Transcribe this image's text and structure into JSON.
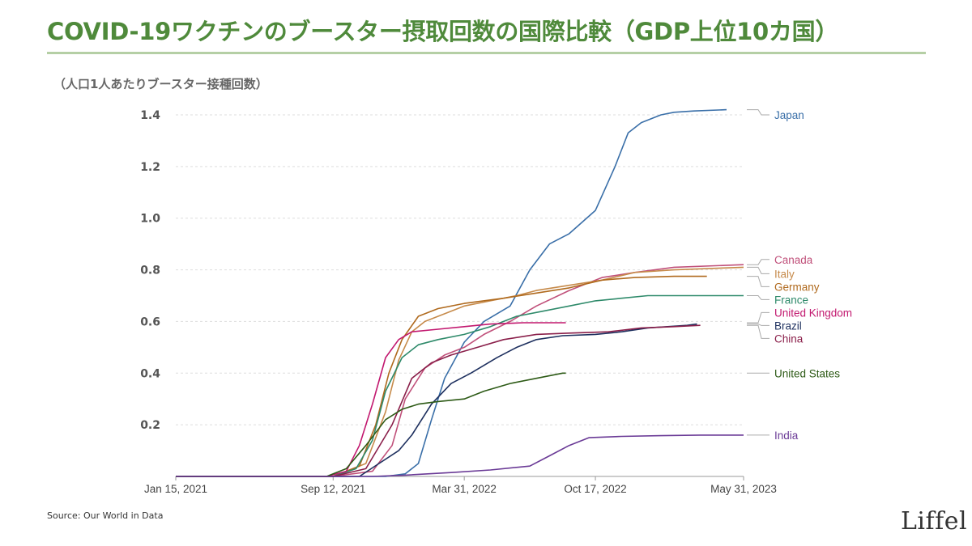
{
  "header": {
    "title": "COVID-19ワクチンのブースター摂取回数の国際比較（GDP上位10カ国）",
    "y_unit_note": "（人口1人あたりブースター接種回数）"
  },
  "footer": {
    "source": "Source: Our World in Data",
    "logo_text": "Liffel"
  },
  "colors": {
    "title": "#4f8a3b",
    "rule": "#b5cfa5"
  },
  "chart_data": {
    "type": "line",
    "title": "COVID-19ワクチンのブースター摂取回数の国際比較（GDP上位10カ国）",
    "ylabel": "（人口1人あたりブースター接種回数）",
    "xlabel": "",
    "x_start": "2021-01-15",
    "x_end": "2023-05-31",
    "x_unit": "days since Jan 15, 2021",
    "xlim": [
      0,
      866
    ],
    "ylim": [
      0,
      1.4
    ],
    "grid": true,
    "x_ticks": [
      {
        "label": "Jan 15, 2021",
        "day": 0
      },
      {
        "label": "Sep 12, 2021",
        "day": 240
      },
      {
        "label": "Mar 31, 2022",
        "day": 440
      },
      {
        "label": "Oct 17, 2022",
        "day": 640
      },
      {
        "label": "May 31, 2023",
        "day": 866
      }
    ],
    "y_ticks": [
      {
        "label": "0.2",
        "value": 0.2
      },
      {
        "label": "0.4",
        "value": 0.4
      },
      {
        "label": "0.6",
        "value": 0.6
      },
      {
        "label": "0.8",
        "value": 0.8
      },
      {
        "label": "1.0",
        "value": 1.0
      },
      {
        "label": "1.2",
        "value": 1.2
      },
      {
        "label": "1.4",
        "value": 1.4
      }
    ],
    "series": [
      {
        "name": "Japan",
        "color": "#3a6fa8",
        "label_value": 1.4,
        "points": [
          [
            320,
            0
          ],
          [
            350,
            0.01
          ],
          [
            370,
            0.05
          ],
          [
            390,
            0.22
          ],
          [
            410,
            0.38
          ],
          [
            440,
            0.52
          ],
          [
            470,
            0.6
          ],
          [
            510,
            0.66
          ],
          [
            540,
            0.8
          ],
          [
            570,
            0.9
          ],
          [
            600,
            0.94
          ],
          [
            640,
            1.03
          ],
          [
            670,
            1.2
          ],
          [
            690,
            1.33
          ],
          [
            710,
            1.37
          ],
          [
            740,
            1.4
          ],
          [
            760,
            1.41
          ],
          [
            790,
            1.415
          ],
          [
            840,
            1.42
          ]
        ]
      },
      {
        "name": "Canada",
        "color": "#c0507a",
        "label_value": 0.84,
        "points": [
          [
            240,
            0
          ],
          [
            300,
            0.02
          ],
          [
            330,
            0.12
          ],
          [
            350,
            0.3
          ],
          [
            380,
            0.42
          ],
          [
            410,
            0.47
          ],
          [
            440,
            0.5
          ],
          [
            470,
            0.55
          ],
          [
            510,
            0.6
          ],
          [
            550,
            0.66
          ],
          [
            600,
            0.72
          ],
          [
            650,
            0.77
          ],
          [
            700,
            0.79
          ],
          [
            760,
            0.81
          ],
          [
            866,
            0.82
          ]
        ]
      },
      {
        "name": "Italy",
        "color": "#c68a4a",
        "label_value": 0.785,
        "points": [
          [
            240,
            0
          ],
          [
            290,
            0.05
          ],
          [
            320,
            0.25
          ],
          [
            340,
            0.45
          ],
          [
            360,
            0.56
          ],
          [
            380,
            0.6
          ],
          [
            410,
            0.63
          ],
          [
            440,
            0.66
          ],
          [
            480,
            0.68
          ],
          [
            520,
            0.7
          ],
          [
            550,
            0.72
          ],
          [
            600,
            0.74
          ],
          [
            650,
            0.76
          ],
          [
            700,
            0.79
          ],
          [
            760,
            0.8
          ],
          [
            866,
            0.81
          ]
        ]
      },
      {
        "name": "Germany",
        "color": "#b06a1e",
        "label_value": 0.735,
        "points": [
          [
            240,
            0
          ],
          [
            280,
            0.04
          ],
          [
            305,
            0.2
          ],
          [
            325,
            0.4
          ],
          [
            345,
            0.53
          ],
          [
            370,
            0.62
          ],
          [
            400,
            0.65
          ],
          [
            440,
            0.67
          ],
          [
            500,
            0.69
          ],
          [
            550,
            0.71
          ],
          [
            600,
            0.73
          ],
          [
            650,
            0.76
          ],
          [
            700,
            0.77
          ],
          [
            760,
            0.775
          ],
          [
            810,
            0.775
          ]
        ]
      },
      {
        "name": "France",
        "color": "#2e8a6a",
        "label_value": 0.7,
        "points": [
          [
            240,
            0
          ],
          [
            275,
            0.03
          ],
          [
            300,
            0.14
          ],
          [
            320,
            0.33
          ],
          [
            345,
            0.46
          ],
          [
            370,
            0.51
          ],
          [
            400,
            0.53
          ],
          [
            440,
            0.55
          ],
          [
            480,
            0.58
          ],
          [
            520,
            0.62
          ],
          [
            560,
            0.64
          ],
          [
            600,
            0.66
          ],
          [
            640,
            0.68
          ],
          [
            680,
            0.69
          ],
          [
            720,
            0.7
          ],
          [
            866,
            0.7
          ]
        ]
      },
      {
        "name": "United Kingdom",
        "color": "#c2186f",
        "label_value": 0.64,
        "points": [
          [
            230,
            0
          ],
          [
            260,
            0.02
          ],
          [
            280,
            0.12
          ],
          [
            300,
            0.28
          ],
          [
            320,
            0.46
          ],
          [
            340,
            0.53
          ],
          [
            360,
            0.56
          ],
          [
            400,
            0.57
          ],
          [
            440,
            0.58
          ],
          [
            480,
            0.59
          ],
          [
            530,
            0.595
          ],
          [
            595,
            0.595
          ]
        ]
      },
      {
        "name": "Brazil",
        "color": "#1d2f5e",
        "label_value": 0.585,
        "points": [
          [
            280,
            0
          ],
          [
            310,
            0.05
          ],
          [
            340,
            0.1
          ],
          [
            360,
            0.16
          ],
          [
            390,
            0.28
          ],
          [
            420,
            0.36
          ],
          [
            450,
            0.4
          ],
          [
            490,
            0.46
          ],
          [
            520,
            0.5
          ],
          [
            550,
            0.53
          ],
          [
            590,
            0.545
          ],
          [
            640,
            0.55
          ],
          [
            680,
            0.56
          ],
          [
            720,
            0.575
          ],
          [
            780,
            0.585
          ],
          [
            795,
            0.59
          ]
        ]
      },
      {
        "name": "China",
        "color": "#8a1f4a",
        "label_value": 0.535,
        "points": [
          [
            240,
            0
          ],
          [
            290,
            0.03
          ],
          [
            330,
            0.2
          ],
          [
            360,
            0.38
          ],
          [
            390,
            0.44
          ],
          [
            420,
            0.47
          ],
          [
            460,
            0.5
          ],
          [
            500,
            0.53
          ],
          [
            550,
            0.55
          ],
          [
            600,
            0.555
          ],
          [
            660,
            0.56
          ],
          [
            710,
            0.575
          ],
          [
            760,
            0.58
          ],
          [
            800,
            0.585
          ]
        ]
      },
      {
        "name": "United States",
        "color": "#2d5a16",
        "label_value": 0.4,
        "points": [
          [
            230,
            0
          ],
          [
            260,
            0.03
          ],
          [
            290,
            0.12
          ],
          [
            320,
            0.22
          ],
          [
            345,
            0.26
          ],
          [
            370,
            0.28
          ],
          [
            400,
            0.29
          ],
          [
            440,
            0.3
          ],
          [
            470,
            0.33
          ],
          [
            510,
            0.36
          ],
          [
            550,
            0.38
          ],
          [
            590,
            0.4
          ],
          [
            595,
            0.4
          ]
        ]
      },
      {
        "name": "India",
        "color": "#6a3a96",
        "label_value": 0.16,
        "points": [
          [
            300,
            0
          ],
          [
            350,
            0.005
          ],
          [
            420,
            0.015
          ],
          [
            480,
            0.025
          ],
          [
            540,
            0.04
          ],
          [
            570,
            0.08
          ],
          [
            600,
            0.12
          ],
          [
            630,
            0.15
          ],
          [
            680,
            0.155
          ],
          [
            740,
            0.158
          ],
          [
            800,
            0.16
          ],
          [
            866,
            0.16
          ]
        ]
      }
    ]
  }
}
